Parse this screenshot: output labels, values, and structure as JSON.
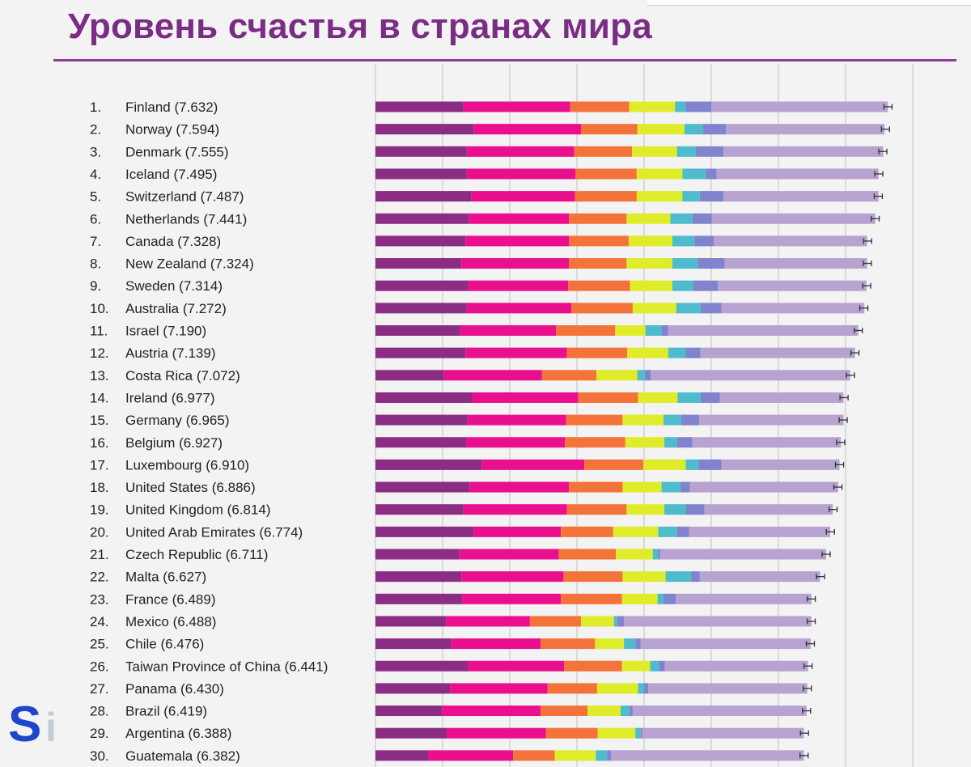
{
  "chart_data": {
    "type": "bar",
    "title": "Уровень счастья в странах мира",
    "orientation": "horizontal",
    "stacked": true,
    "grid": true,
    "legend": "none",
    "colors": [
      "#8b2d84",
      "#ea0f8d",
      "#f4733b",
      "#dfec2a",
      "#4ebccc",
      "#8183cf",
      "#b8a2d0"
    ],
    "rows": [
      {
        "label": "1.",
        "name": "Finland (7.632)",
        "score": 7.632,
        "segments": [
          1.31,
          1.59,
          0.88,
          0.68,
          0.16,
          0.38,
          2.63
        ]
      },
      {
        "label": "2.",
        "name": "Norway (7.594)",
        "score": 7.594,
        "segments": [
          1.46,
          1.6,
          0.84,
          0.7,
          0.28,
          0.34,
          2.36
        ]
      },
      {
        "label": "3.",
        "name": "Denmark (7.555)",
        "score": 7.555,
        "segments": [
          1.36,
          1.6,
          0.86,
          0.67,
          0.28,
          0.41,
          2.38
        ]
      },
      {
        "label": "4.",
        "name": "Iceland (7.495)",
        "score": 7.495,
        "segments": [
          1.36,
          1.62,
          0.91,
          0.68,
          0.35,
          0.16,
          2.41
        ]
      },
      {
        "label": "5.",
        "name": "Switzerland (7.487)",
        "score": 7.487,
        "segments": [
          1.43,
          1.54,
          0.92,
          0.68,
          0.26,
          0.35,
          2.31
        ]
      },
      {
        "label": "6.",
        "name": "Netherlands (7.441)",
        "score": 7.441,
        "segments": [
          1.39,
          1.49,
          0.86,
          0.65,
          0.33,
          0.29,
          2.43
        ]
      },
      {
        "label": "7.",
        "name": "Canada (7.328)",
        "score": 7.328,
        "segments": [
          1.34,
          1.54,
          0.89,
          0.65,
          0.33,
          0.29,
          2.28
        ]
      },
      {
        "label": "8.",
        "name": "New Zealand (7.324)",
        "score": 7.324,
        "segments": [
          1.28,
          1.6,
          0.86,
          0.68,
          0.38,
          0.4,
          2.12
        ]
      },
      {
        "label": "9.",
        "name": "Sweden (7.314)",
        "score": 7.314,
        "segments": [
          1.38,
          1.49,
          0.92,
          0.63,
          0.31,
          0.37,
          2.21
        ]
      },
      {
        "label": "10.",
        "name": "Australia (7.272)",
        "score": 7.272,
        "segments": [
          1.36,
          1.56,
          0.91,
          0.65,
          0.36,
          0.31,
          2.13
        ]
      },
      {
        "label": "11.",
        "name": "Israel (7.190)",
        "score": 7.19,
        "segments": [
          1.26,
          1.43,
          0.88,
          0.45,
          0.24,
          0.1,
          2.83
        ]
      },
      {
        "label": "12.",
        "name": "Austria (7.139)",
        "score": 7.139,
        "segments": [
          1.34,
          1.51,
          0.9,
          0.61,
          0.26,
          0.22,
          2.3
        ]
      },
      {
        "label": "13.",
        "name": "Costa Rica (7.072)",
        "score": 7.072,
        "segments": [
          1.02,
          1.46,
          0.81,
          0.61,
          0.11,
          0.09,
          2.97
        ]
      },
      {
        "label": "14.",
        "name": "Ireland (6.977)",
        "score": 6.977,
        "segments": [
          1.44,
          1.58,
          0.89,
          0.59,
          0.34,
          0.29,
          1.84
        ]
      },
      {
        "label": "15.",
        "name": "Germany (6.965)",
        "score": 6.965,
        "segments": [
          1.37,
          1.47,
          0.84,
          0.61,
          0.26,
          0.27,
          2.15
        ]
      },
      {
        "label": "16.",
        "name": "Belgium (6.927)",
        "score": 6.927,
        "segments": [
          1.35,
          1.47,
          0.9,
          0.58,
          0.19,
          0.23,
          2.21
        ]
      },
      {
        "label": "17.",
        "name": "Luxembourg (6.910)",
        "score": 6.91,
        "segments": [
          1.58,
          1.53,
          0.88,
          0.63,
          0.19,
          0.34,
          1.76
        ]
      },
      {
        "label": "18.",
        "name": "United States (6.886)",
        "score": 6.886,
        "segments": [
          1.4,
          1.48,
          0.8,
          0.58,
          0.28,
          0.14,
          2.21
        ]
      },
      {
        "label": "19.",
        "name": "United Kingdom (6.814)",
        "score": 6.814,
        "segments": [
          1.31,
          1.54,
          0.89,
          0.56,
          0.32,
          0.28,
          1.91
        ]
      },
      {
        "label": "20.",
        "name": "United Arab Emirates (6.774)",
        "score": 6.774,
        "segments": [
          1.46,
          1.3,
          0.78,
          0.67,
          0.28,
          0.18,
          2.1
        ]
      },
      {
        "label": "21.",
        "name": "Czech Republic (6.711)",
        "score": 6.711,
        "segments": [
          1.25,
          1.48,
          0.85,
          0.55,
          0.08,
          0.03,
          2.47
        ]
      },
      {
        "label": "22.",
        "name": "Malta (6.627)",
        "score": 6.627,
        "segments": [
          1.28,
          1.52,
          0.88,
          0.64,
          0.38,
          0.13,
          1.79
        ]
      },
      {
        "label": "23.",
        "name": "France (6.489)",
        "score": 6.489,
        "segments": [
          1.29,
          1.47,
          0.91,
          0.53,
          0.09,
          0.18,
          2.02
        ]
      },
      {
        "label": "24.",
        "name": "Mexico (6.488)",
        "score": 6.488,
        "segments": [
          1.05,
          1.25,
          0.76,
          0.49,
          0.05,
          0.1,
          2.79
        ]
      },
      {
        "label": "25.",
        "name": "Chile (6.476)",
        "score": 6.476,
        "segments": [
          1.13,
          1.33,
          0.81,
          0.43,
          0.17,
          0.08,
          2.53
        ]
      },
      {
        "label": "26.",
        "name": "Taiwan Province of China (6.441)",
        "score": 6.441,
        "segments": [
          1.38,
          1.43,
          0.86,
          0.42,
          0.13,
          0.09,
          2.13
        ]
      },
      {
        "label": "27.",
        "name": "Panama (6.430)",
        "score": 6.43,
        "segments": [
          1.11,
          1.45,
          0.74,
          0.61,
          0.09,
          0.06,
          2.37
        ]
      },
      {
        "label": "28.",
        "name": "Brazil (6.419)",
        "score": 6.419,
        "segments": [
          0.99,
          1.47,
          0.7,
          0.49,
          0.13,
          0.05,
          2.59
        ]
      },
      {
        "label": "29.",
        "name": "Argentina (6.388)",
        "score": 6.388,
        "segments": [
          1.06,
          1.48,
          0.77,
          0.56,
          0.08,
          0.02,
          2.41
        ]
      },
      {
        "label": "30.",
        "name": "Guatemala (6.382)",
        "score": 6.382,
        "segments": [
          0.79,
          1.26,
          0.62,
          0.61,
          0.17,
          0.06,
          2.87
        ]
      }
    ],
    "xlim": [
      0,
      8
    ],
    "xgrid_step": 1
  }
}
